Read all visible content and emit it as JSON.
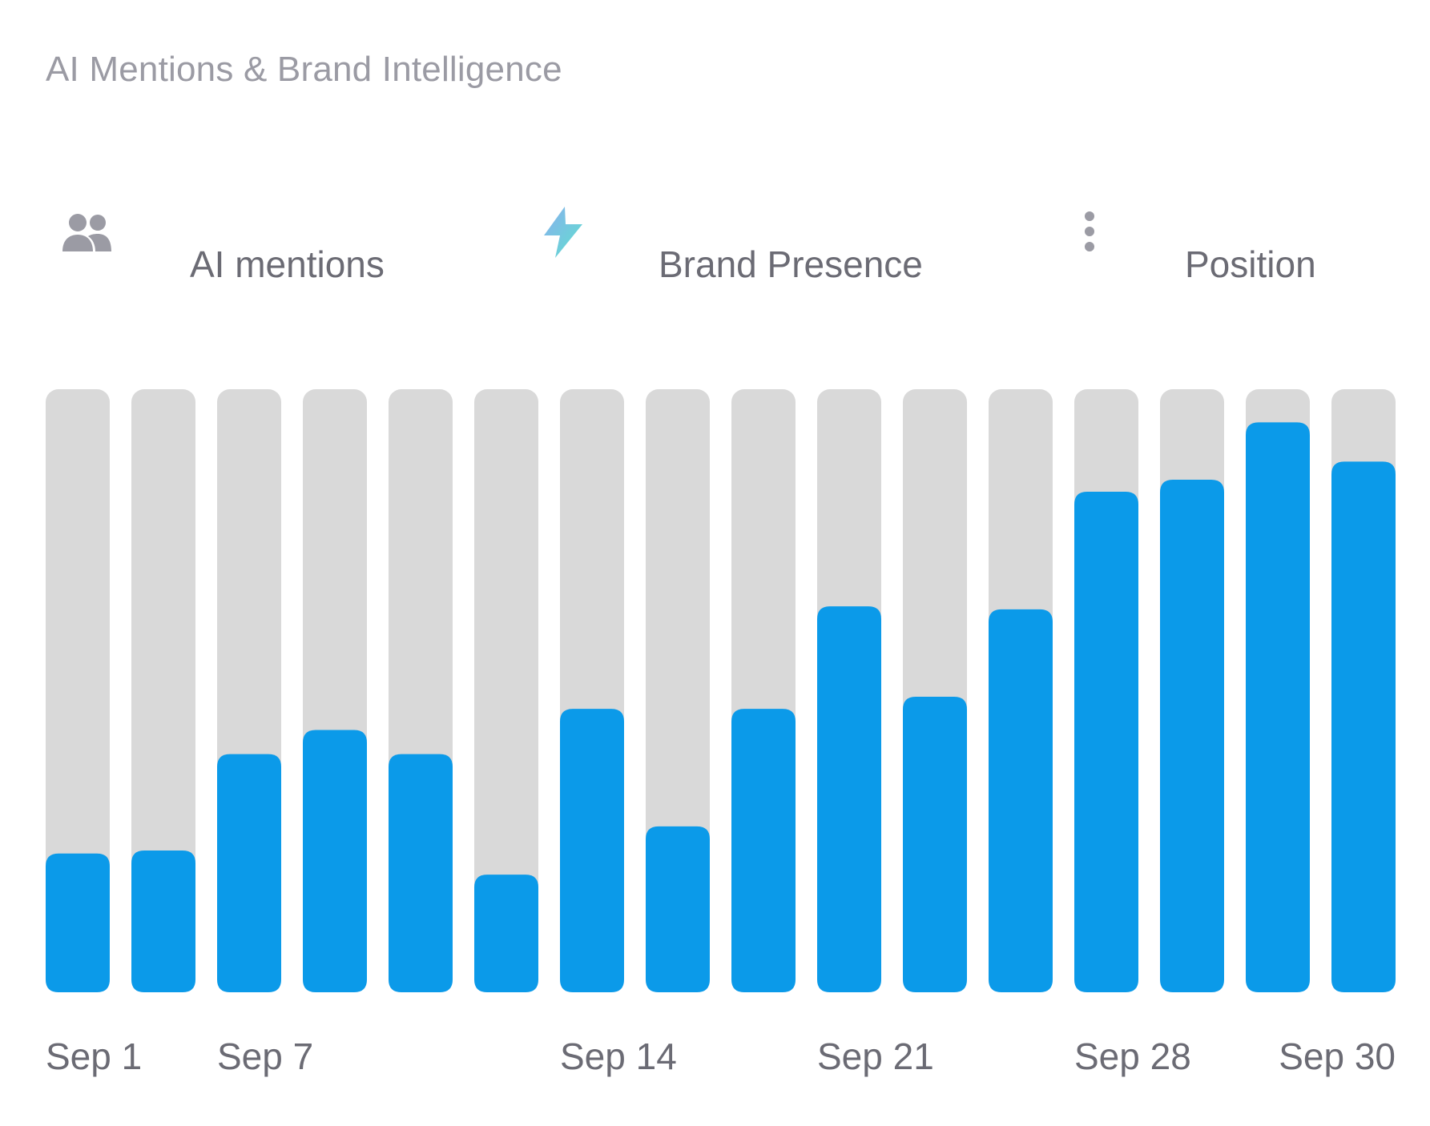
{
  "header": {
    "title": "AI Mentions & Brand Intelligence"
  },
  "metrics": [
    {
      "label": "AI mentions",
      "icon": "users-icon"
    },
    {
      "label": "Brand Presence",
      "icon": "lightning-icon"
    },
    {
      "label": "Position",
      "icon": "vertical-dots-icon"
    }
  ],
  "colors": {
    "bar_fill": "#0b9ae9",
    "bar_track": "#d9d9d9",
    "title": "#9b9ba4",
    "label": "#6b6b74"
  },
  "chart_data": {
    "type": "bar",
    "title": "",
    "xlabel": "",
    "ylabel": "",
    "grid": false,
    "ylim": [
      0,
      100
    ],
    "categories": [
      "",
      "",
      "",
      "",
      "",
      "",
      "",
      "",
      "",
      "",
      "",
      "",
      "",
      "",
      "",
      ""
    ],
    "values": [
      23,
      23.5,
      39.5,
      43.5,
      39.5,
      19.5,
      47,
      27.5,
      47,
      64,
      49,
      63.5,
      83,
      85,
      94.5,
      88
    ],
    "tick_labels": [
      {
        "index": 0,
        "label": "Sep 1"
      },
      {
        "index": 2,
        "label": "Sep 7"
      },
      {
        "index": 6,
        "label": "Sep 14"
      },
      {
        "index": 9,
        "label": "Sep 21"
      },
      {
        "index": 12,
        "label": "Sep 28"
      },
      {
        "index": 15,
        "label": "Sep 30"
      }
    ]
  }
}
